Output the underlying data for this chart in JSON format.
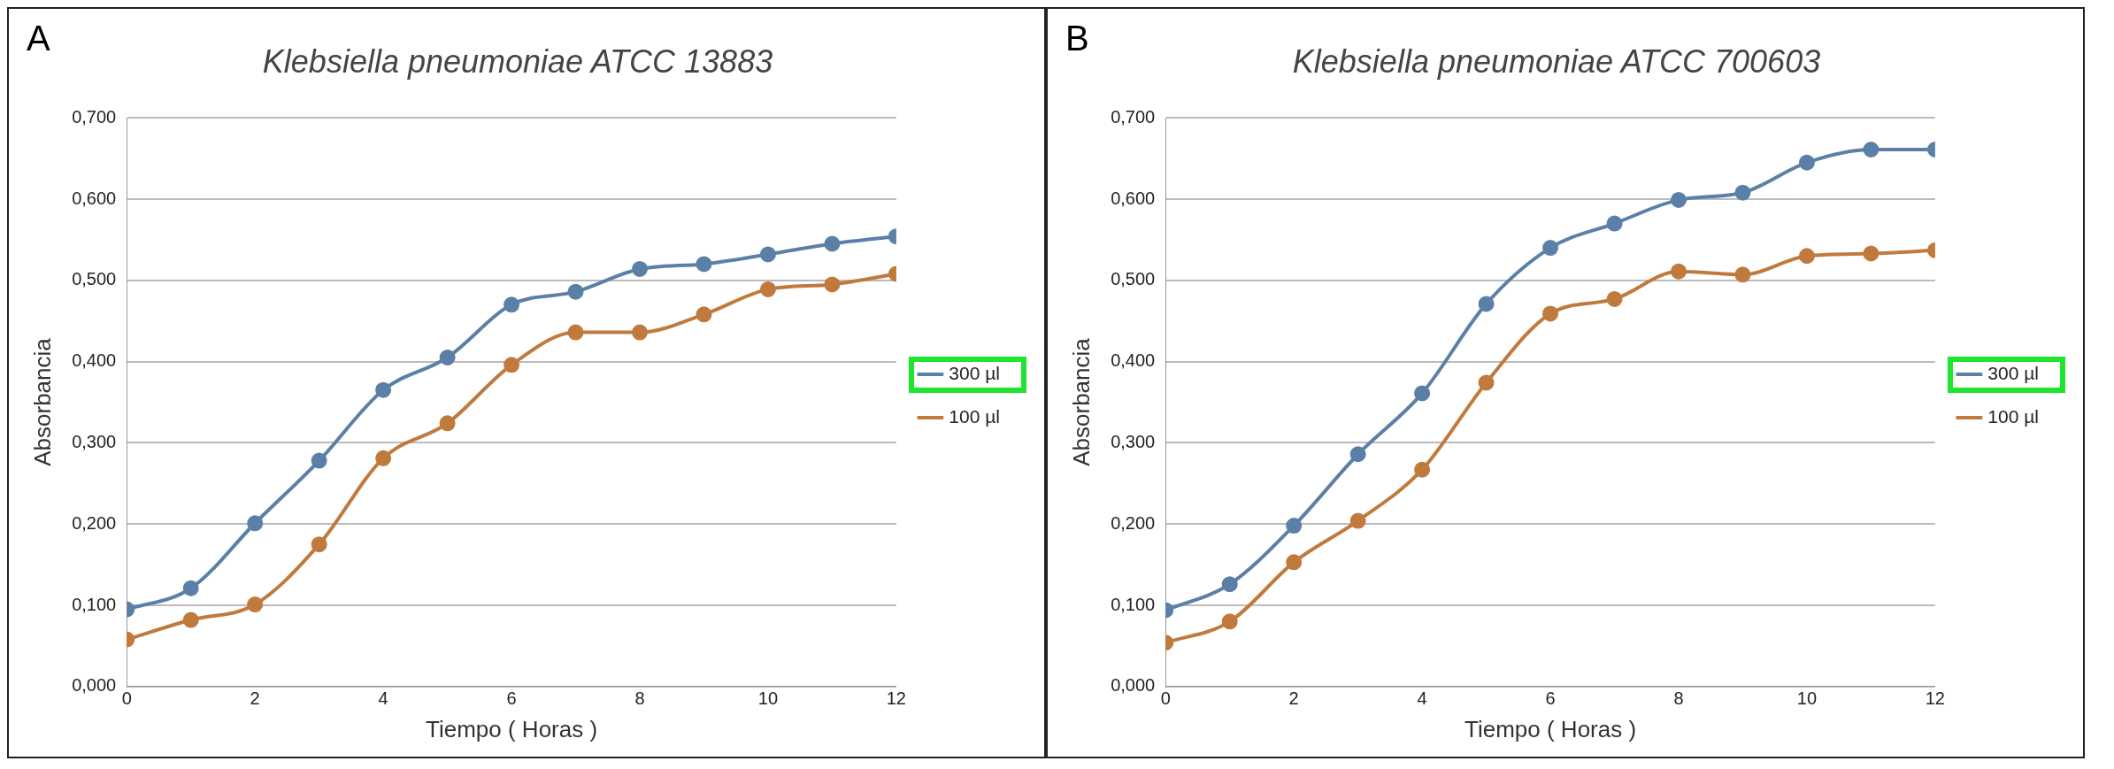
{
  "chart_data": [
    {
      "type": "line",
      "title": "Klebsiella pneumoniae ATCC 13883",
      "xlabel": "Tiempo ( Horas )",
      "ylabel": "Absorbancia",
      "annotations": [
        "A"
      ],
      "x": [
        0,
        1,
        2,
        3,
        4,
        5,
        6,
        7,
        8,
        9,
        10,
        11,
        12
      ],
      "series": [
        {
          "name": "300 µl",
          "color": "#5b80a8",
          "values": [
            0.095,
            0.121,
            0.201,
            0.278,
            0.365,
            0.405,
            0.47,
            0.486,
            0.514,
            0.52,
            0.532,
            0.545,
            0.554
          ]
        },
        {
          "name": "100 µl",
          "color": "#c07a3e",
          "values": [
            0.058,
            0.082,
            0.101,
            0.175,
            0.281,
            0.324,
            0.396,
            0.436,
            0.436,
            0.458,
            0.489,
            0.495,
            0.508
          ]
        }
      ],
      "xlim": [
        0,
        12
      ],
      "xticks": [
        0,
        2,
        4,
        6,
        8,
        10,
        12
      ],
      "ylim": [
        0,
        0.7
      ],
      "yticks": [
        {
          "value": 0,
          "label": "0,000"
        },
        {
          "value": 0.1,
          "label": "0,100"
        },
        {
          "value": 0.2,
          "label": "0,200"
        },
        {
          "value": 0.3,
          "label": "0,300"
        },
        {
          "value": 0.4,
          "label": "0,400"
        },
        {
          "value": 0.5,
          "label": "0,500"
        },
        {
          "value": 0.6,
          "label": "0,600"
        },
        {
          "value": 0.7,
          "label": "0,700"
        }
      ],
      "grid": "y",
      "legend": "right",
      "marker": "circle",
      "line_style": "solid"
    },
    {
      "type": "line",
      "title": "Klebsiella pneumoniae ATCC 700603",
      "xlabel": "Tiempo ( Horas )",
      "ylabel": "Absorbancia",
      "annotations": [
        "B"
      ],
      "x": [
        0,
        1,
        2,
        3,
        4,
        5,
        6,
        7,
        8,
        9,
        10,
        11,
        12
      ],
      "series": [
        {
          "name": "300 µl",
          "color": "#5b80a8",
          "values": [
            0.094,
            0.126,
            0.198,
            0.286,
            0.361,
            0.471,
            0.54,
            0.57,
            0.599,
            0.608,
            0.645,
            0.661,
            0.661
          ]
        },
        {
          "name": "100 µl",
          "color": "#c07a3e",
          "values": [
            0.054,
            0.08,
            0.153,
            0.204,
            0.267,
            0.374,
            0.459,
            0.477,
            0.511,
            0.507,
            0.53,
            0.533,
            0.537
          ]
        }
      ],
      "xlim": [
        0,
        12
      ],
      "xticks": [
        0,
        2,
        4,
        6,
        8,
        10,
        12
      ],
      "ylim": [
        0,
        0.7
      ],
      "yticks": [
        {
          "value": 0,
          "label": "0,000"
        },
        {
          "value": 0.1,
          "label": "0,100"
        },
        {
          "value": 0.2,
          "label": "0,200"
        },
        {
          "value": 0.3,
          "label": "0,300"
        },
        {
          "value": 0.4,
          "label": "0,400"
        },
        {
          "value": 0.5,
          "label": "0,500"
        },
        {
          "value": 0.6,
          "label": "0,600"
        },
        {
          "value": 0.7,
          "label": "0,700"
        }
      ],
      "grid": "y",
      "legend": "right",
      "marker": "circle",
      "line_style": "solid"
    }
  ]
}
